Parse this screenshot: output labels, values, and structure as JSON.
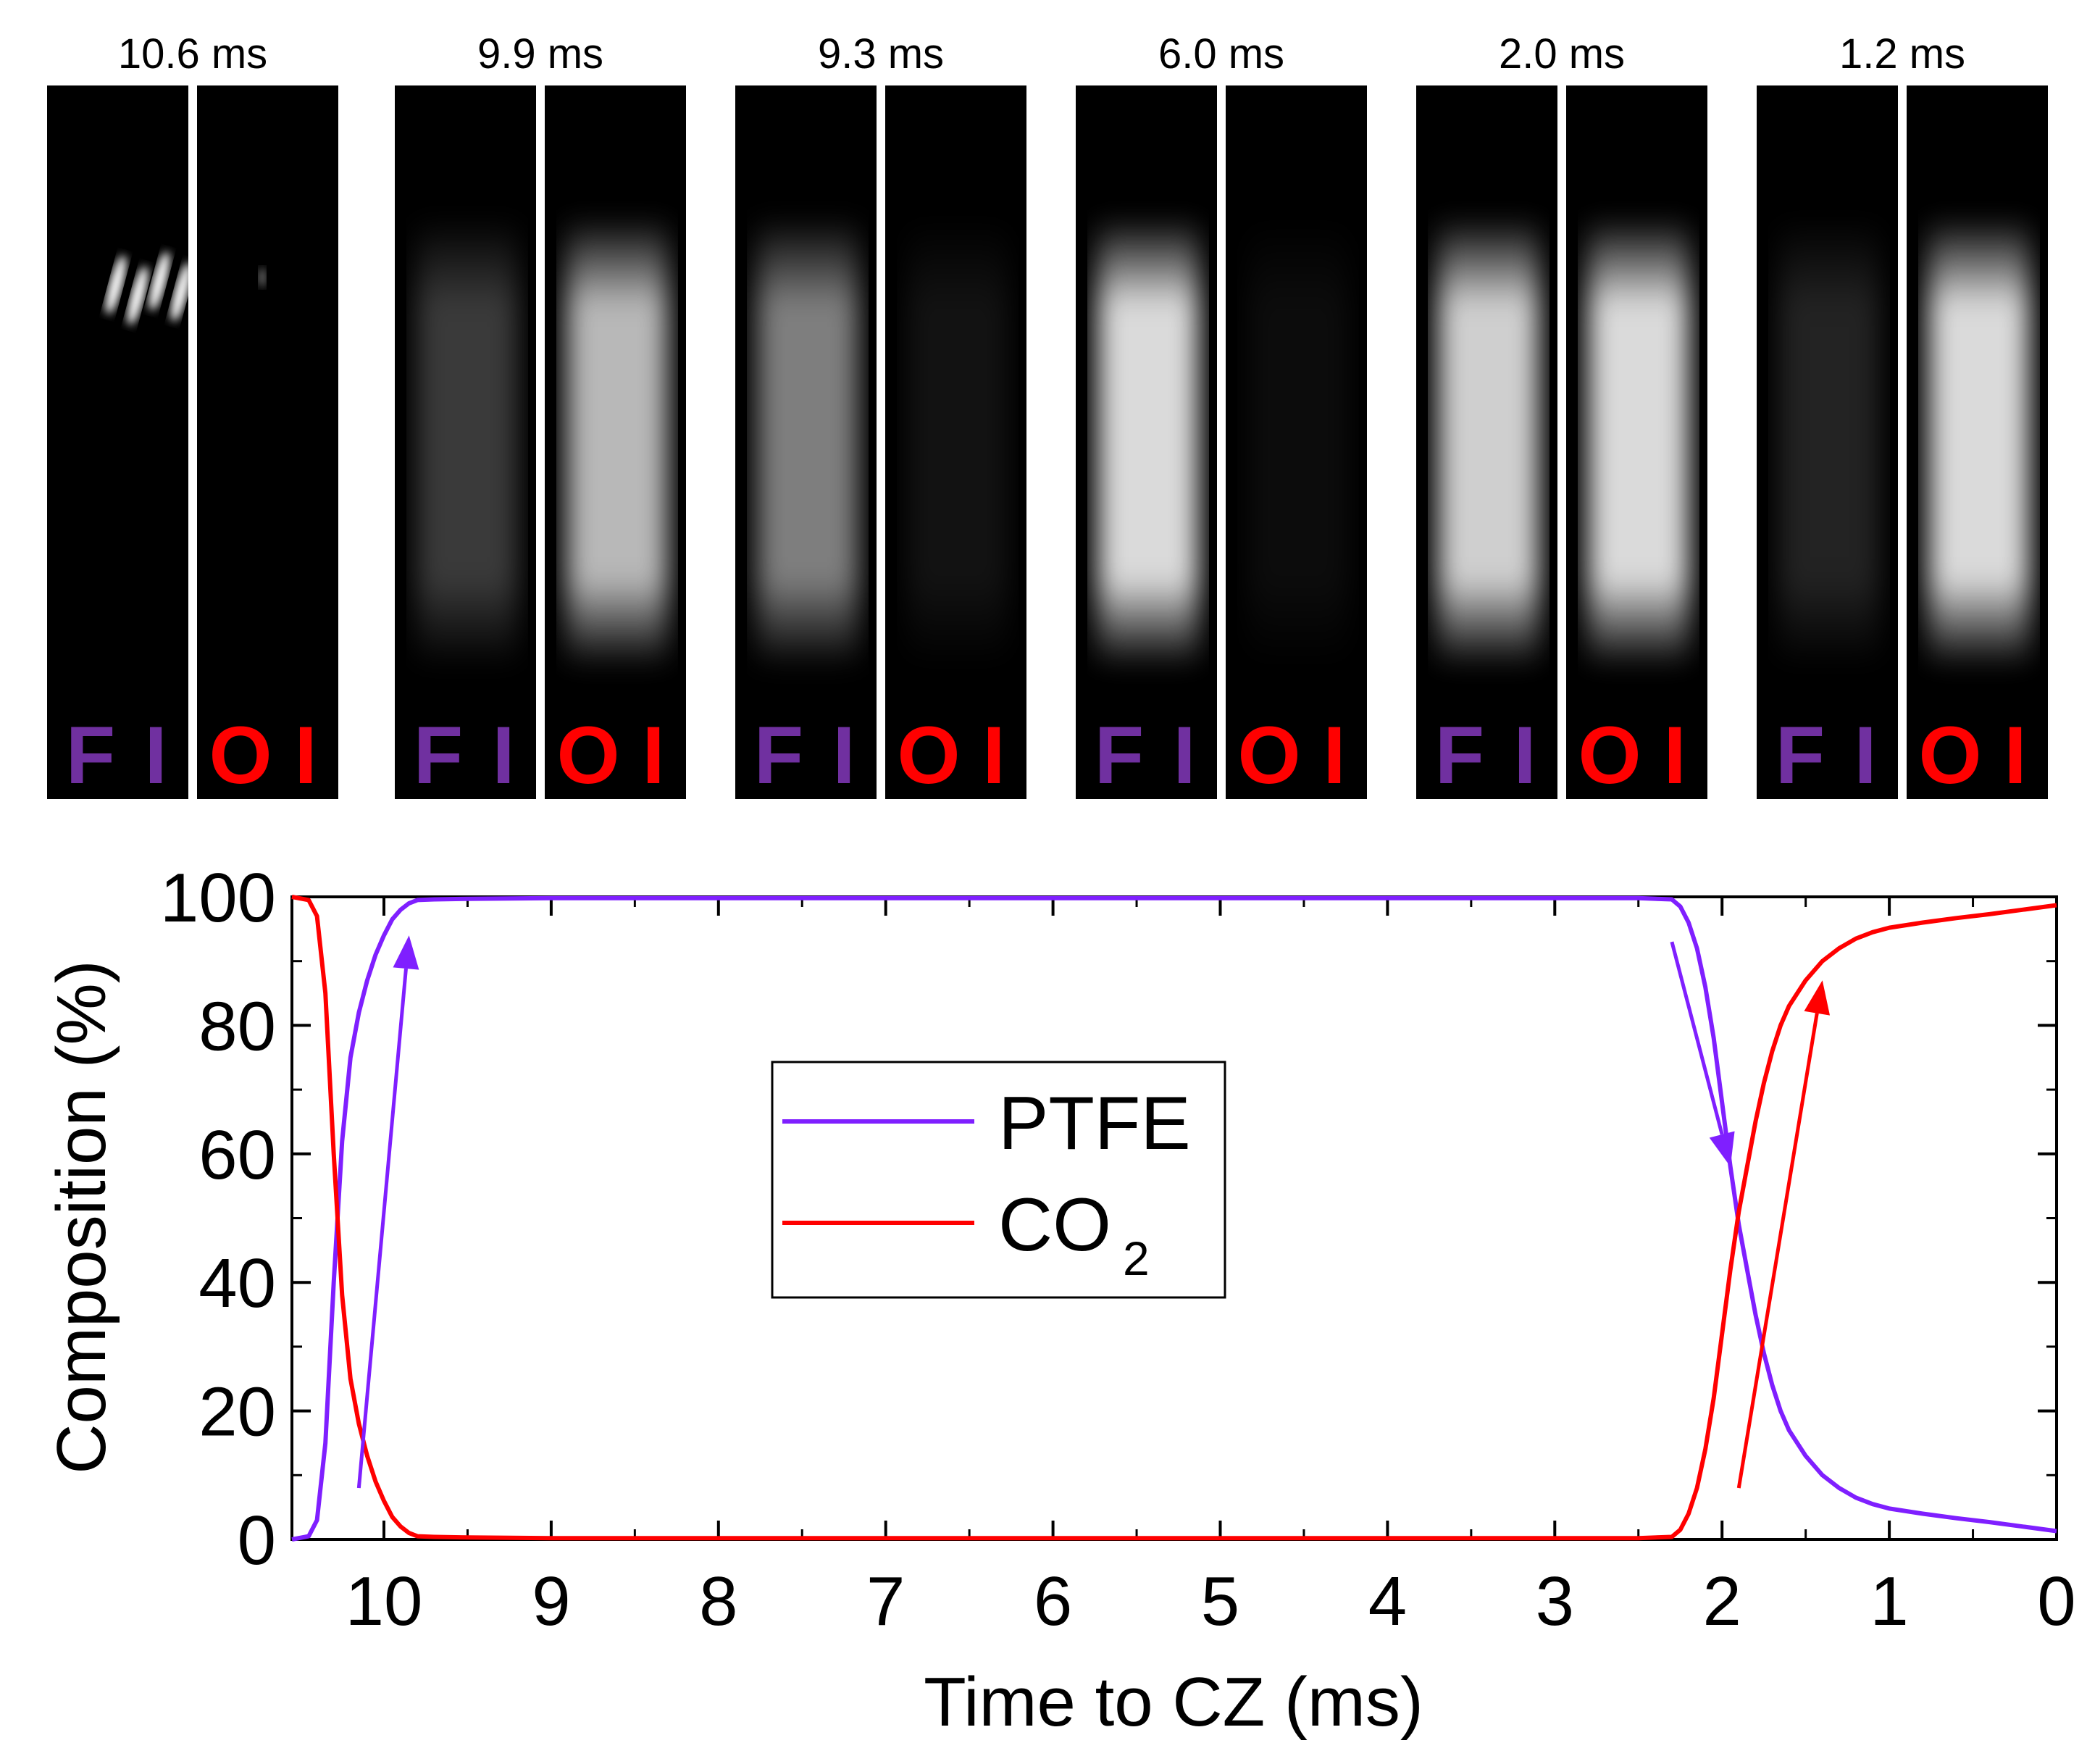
{
  "colors": {
    "ptfe": "#7f1fff",
    "co2": "#ff0000",
    "fi_label": "#7030a0",
    "oi_label": "#ff0000",
    "frame_bg": "#000000"
  },
  "image_panels": [
    {
      "time_label": "10.6 ms",
      "fi": 0,
      "oi": 0
    },
    {
      "time_label": "9.9 ms",
      "fi": 0.25,
      "oi": 0.8
    },
    {
      "time_label": "9.3 ms",
      "fi": 0.55,
      "oi": 0.08
    },
    {
      "time_label": "6.0 ms",
      "fi": 0.95,
      "oi": 0.05
    },
    {
      "time_label": "2.0 ms",
      "fi": 0.9,
      "oi": 0.95
    },
    {
      "time_label": "1.2 ms",
      "fi": 0.15,
      "oi": 0.95
    }
  ],
  "panel_labels": {
    "fi_letters": [
      "F",
      "I"
    ],
    "oi_letters": [
      "O",
      "I"
    ]
  },
  "chart_data": {
    "type": "line",
    "title": "",
    "xlabel": "Time to CZ (ms)",
    "ylabel": "Composition (%)",
    "xlim": [
      10.55,
      0
    ],
    "ylim": [
      0,
      100
    ],
    "xticks": [
      10,
      9,
      8,
      7,
      6,
      5,
      4,
      3,
      2,
      1,
      0
    ],
    "yticks": [
      0,
      20,
      40,
      60,
      80,
      100
    ],
    "legend": {
      "position": "center-left",
      "entries": [
        {
          "name": "PTFE",
          "base": "PTFE",
          "sub": ""
        },
        {
          "name": "CO2",
          "base": "CO",
          "sub": "2"
        }
      ]
    },
    "series": [
      {
        "name": "PTFE",
        "color": "#7f1fff",
        "x": [
          10.55,
          10.45,
          10.4,
          10.35,
          10.3,
          10.25,
          10.2,
          10.15,
          10.1,
          10.05,
          10.0,
          9.95,
          9.9,
          9.85,
          9.8,
          9.7,
          9.5,
          9.0,
          5.0,
          2.5,
          2.3,
          2.25,
          2.2,
          2.15,
          2.1,
          2.05,
          2.0,
          1.95,
          1.9,
          1.85,
          1.8,
          1.75,
          1.7,
          1.65,
          1.6,
          1.5,
          1.4,
          1.3,
          1.2,
          1.1,
          1.0,
          0.8,
          0.6,
          0.4,
          0.2,
          0.0
        ],
        "y": [
          0,
          0.5,
          3,
          15,
          40,
          62,
          75,
          82,
          87,
          91,
          94,
          96.5,
          98,
          99,
          99.5,
          99.6,
          99.7,
          99.8,
          99.8,
          99.8,
          99.6,
          98.5,
          96,
          92,
          86,
          78,
          68,
          58,
          49,
          42,
          35,
          29,
          24,
          20,
          17,
          13,
          10,
          8,
          6.5,
          5.5,
          4.8,
          4,
          3.3,
          2.7,
          2,
          1.3
        ]
      },
      {
        "name": "CO2",
        "color": "#ff0000",
        "x": [
          10.55,
          10.45,
          10.4,
          10.35,
          10.3,
          10.25,
          10.2,
          10.15,
          10.1,
          10.05,
          10.0,
          9.95,
          9.9,
          9.85,
          9.8,
          9.7,
          9.5,
          9.0,
          5.0,
          2.5,
          2.3,
          2.25,
          2.2,
          2.15,
          2.1,
          2.05,
          2.0,
          1.95,
          1.9,
          1.85,
          1.8,
          1.75,
          1.7,
          1.65,
          1.6,
          1.5,
          1.4,
          1.3,
          1.2,
          1.1,
          1.0,
          0.8,
          0.6,
          0.4,
          0.2,
          0.0
        ],
        "y": [
          100,
          99.5,
          97,
          85,
          60,
          38,
          25,
          18,
          13,
          9,
          6,
          3.5,
          2,
          1,
          0.5,
          0.4,
          0.3,
          0.2,
          0.2,
          0.2,
          0.4,
          1.5,
          4,
          8,
          14,
          22,
          32,
          42,
          51,
          58,
          65,
          71,
          76,
          80,
          83,
          87,
          90,
          92,
          93.5,
          94.5,
          95.2,
          96,
          96.7,
          97.3,
          98,
          98.7
        ]
      }
    ],
    "annotations": [
      {
        "type": "arrow",
        "series": "PTFE",
        "from": [
          10.15,
          8
        ],
        "to": [
          9.85,
          94
        ]
      },
      {
        "type": "arrow",
        "series": "PTFE",
        "from": [
          2.3,
          93
        ],
        "to": [
          1.95,
          58
        ]
      },
      {
        "type": "arrow",
        "series": "CO2",
        "from": [
          1.9,
          8
        ],
        "to": [
          1.4,
          87
        ]
      }
    ]
  }
}
